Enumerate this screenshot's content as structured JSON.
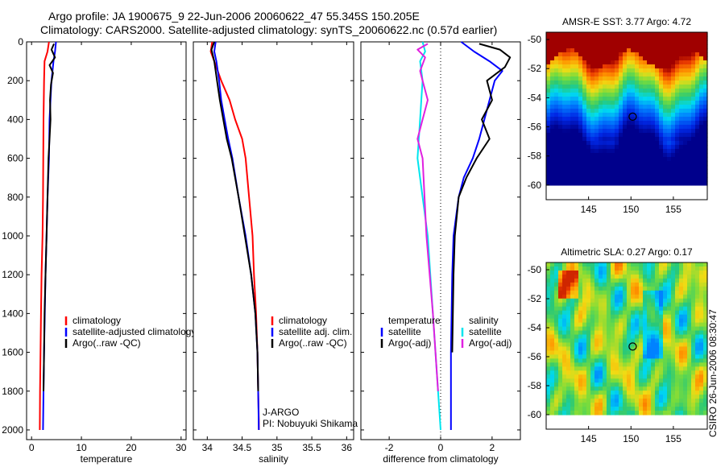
{
  "title": {
    "line1": "Argo profile: JA 1900675_9 22-Jun-2006 20060622_47 55.345S 150.205E",
    "line2": "Climatology: CARS2000. Satellite-adjusted climatology: synTS_20060622.nc (0.57d earlier)"
  },
  "side_label": "CSIRO 26-Jun-2006 08:30:47",
  "chart_data": [
    {
      "type": "line",
      "xlabel": "temperature",
      "ylabel": "",
      "xlim": [
        -1,
        31
      ],
      "ylim": [
        2050,
        0
      ],
      "xticks": [
        "0",
        "10",
        "20",
        "30"
      ],
      "yticks": [
        "0",
        "200",
        "400",
        "600",
        "800",
        "1000",
        "1200",
        "1400",
        "1600",
        "1800",
        "2000"
      ],
      "legend": [
        "climatology",
        "satellite-adjusted climatology",
        "Argo(..raw -QC)"
      ],
      "series": [
        {
          "name": "climatology",
          "color": "#ff0000",
          "x": [
            3.5,
            3.2,
            2.6,
            2.5,
            2.4,
            2.35,
            2.3,
            2.2,
            2.0,
            1.9,
            1.8,
            1.7,
            1.65
          ],
          "y": [
            0,
            50,
            100,
            200,
            400,
            600,
            800,
            1000,
            1200,
            1400,
            1600,
            1800,
            2000
          ]
        },
        {
          "name": "satellite-adjusted climatology",
          "color": "#0000ff",
          "x": [
            4.9,
            4.7,
            4.4,
            4.2,
            4.0,
            3.8,
            3.6,
            3.5,
            3.2,
            3.0,
            2.8,
            2.65,
            2.5,
            2.4,
            2.3
          ],
          "y": [
            0,
            50,
            100,
            150,
            200,
            300,
            400,
            600,
            800,
            1000,
            1200,
            1400,
            1600,
            1800,
            2000
          ]
        },
        {
          "name": "Argo(..raw -QC)",
          "color": "#000000",
          "x": [
            4.5,
            4.0,
            4.7,
            3.6,
            4.3,
            3.9,
            3.7,
            3.8,
            3.6,
            3.4,
            3.2,
            3.0,
            2.8,
            2.6,
            2.5,
            2.4
          ],
          "y": [
            10,
            40,
            80,
            120,
            160,
            220,
            300,
            400,
            500,
            600,
            800,
            1000,
            1200,
            1400,
            1600,
            1800
          ]
        }
      ]
    },
    {
      "type": "line",
      "xlabel": "salinity",
      "xlim": [
        33.8,
        36.1
      ],
      "ylim": [
        2050,
        0
      ],
      "xticks": [
        "34",
        "34.5",
        "35",
        "35.5",
        "36"
      ],
      "legend": [
        "climatology",
        "satellite adj. clim.",
        "Argo(..raw -QC)"
      ],
      "annotations": [
        "J-ARGO",
        "PI: Nobuyuki Shikama"
      ],
      "series": [
        {
          "name": "climatology",
          "color": "#ff0000",
          "x": [
            34.07,
            34.05,
            34.1,
            34.2,
            34.32,
            34.4,
            34.5,
            34.55,
            34.6,
            34.65,
            34.67,
            34.7,
            34.72,
            34.73,
            34.74,
            34.74
          ],
          "y": [
            0,
            50,
            100,
            200,
            300,
            400,
            500,
            600,
            800,
            1000,
            1200,
            1400,
            1600,
            1800,
            1950,
            2000
          ]
        },
        {
          "name": "satellite adj. clim.",
          "color": "#0000ff",
          "x": [
            34.12,
            34.1,
            34.13,
            34.17,
            34.2,
            34.25,
            34.3,
            34.36,
            34.45,
            34.55,
            34.63,
            34.69,
            34.72,
            34.73,
            34.74
          ],
          "y": [
            0,
            50,
            100,
            200,
            300,
            400,
            500,
            600,
            800,
            1000,
            1200,
            1400,
            1600,
            1800,
            2000
          ]
        },
        {
          "name": "Argo(..raw -QC)",
          "color": "#000000",
          "x": [
            34.1,
            34.06,
            34.1,
            34.14,
            34.18,
            34.23,
            34.28,
            34.35,
            34.45,
            34.54,
            34.63,
            34.69,
            34.72,
            34.73
          ],
          "y": [
            0,
            40,
            100,
            200,
            300,
            400,
            500,
            600,
            800,
            1000,
            1200,
            1400,
            1600,
            1800
          ]
        }
      ]
    },
    {
      "type": "line",
      "xlabel": "difference from climatology",
      "xlim": [
        -3.1,
        3.1
      ],
      "ylim": [
        2050,
        0
      ],
      "xticks": [
        "-2",
        "0",
        "2"
      ],
      "legend_left_title": "temperature",
      "legend_right_title": "salinity",
      "legend": [
        "satellite",
        "Argo(-adj)",
        "satellite",
        "Argo(-adj)"
      ],
      "series": [
        {
          "name": "temperature satellite",
          "color": "#0000ff",
          "x": [
            0.8,
            1.3,
            1.9,
            2.4,
            2.1,
            1.9,
            1.7,
            1.5,
            1.25,
            0.9,
            0.7,
            0.5,
            0.45,
            0.4,
            0.4
          ],
          "y": [
            0,
            50,
            100,
            150,
            200,
            300,
            400,
            500,
            600,
            700,
            800,
            1000,
            1200,
            1600,
            2000
          ]
        },
        {
          "name": "temperature Argo(-adj)",
          "color": "#000000",
          "x": [
            1.5,
            2.3,
            2.7,
            2.5,
            1.8,
            2.0,
            1.6,
            1.9,
            1.4,
            1.0,
            0.7,
            0.55,
            0.5,
            0.45
          ],
          "y": [
            10,
            40,
            80,
            130,
            200,
            300,
            400,
            500,
            600,
            700,
            800,
            1000,
            1200,
            1600
          ]
        },
        {
          "name": "salinity satellite",
          "color": "#00e5ee",
          "x": [
            -0.7,
            -0.6,
            -0.8,
            -0.7,
            -0.75,
            -0.8,
            -0.85,
            -0.9,
            -0.7,
            -0.5,
            -0.3,
            -0.1,
            0.0
          ],
          "y": [
            0,
            50,
            100,
            200,
            300,
            400,
            500,
            600,
            800,
            1000,
            1400,
            1800,
            2000
          ]
        },
        {
          "name": "salinity Argo(-adj)",
          "color": "#e020e0",
          "x": [
            -0.5,
            -0.9,
            -0.6,
            -0.8,
            -0.7,
            -0.5,
            -0.7,
            -0.9,
            -0.7,
            -0.55,
            -0.3,
            -0.1
          ],
          "y": [
            10,
            40,
            80,
            150,
            200,
            300,
            400,
            500,
            600,
            1000,
            1400,
            1800
          ]
        }
      ]
    },
    {
      "type": "heatmap",
      "title": "AMSR-E SST: 3.77 Argo: 4.72",
      "xlim": [
        140,
        159
      ],
      "ylim": [
        -61,
        -49.5
      ],
      "xticks": [
        "145",
        "150",
        "155"
      ],
      "yticks": [
        "-50",
        "-52",
        "-54",
        "-56",
        "-58",
        "-60"
      ],
      "marker": {
        "lon": 150.2,
        "lat": -55.3
      }
    },
    {
      "type": "heatmap",
      "title": "Altimetric SLA: 0.27 Argo: 0.17",
      "xlim": [
        140,
        159
      ],
      "ylim": [
        -61,
        -49.5
      ],
      "xticks": [
        "145",
        "150",
        "155"
      ],
      "yticks": [
        "-50",
        "-52",
        "-54",
        "-56",
        "-58",
        "-60"
      ],
      "marker": {
        "lon": 150.2,
        "lat": -55.3
      }
    }
  ]
}
